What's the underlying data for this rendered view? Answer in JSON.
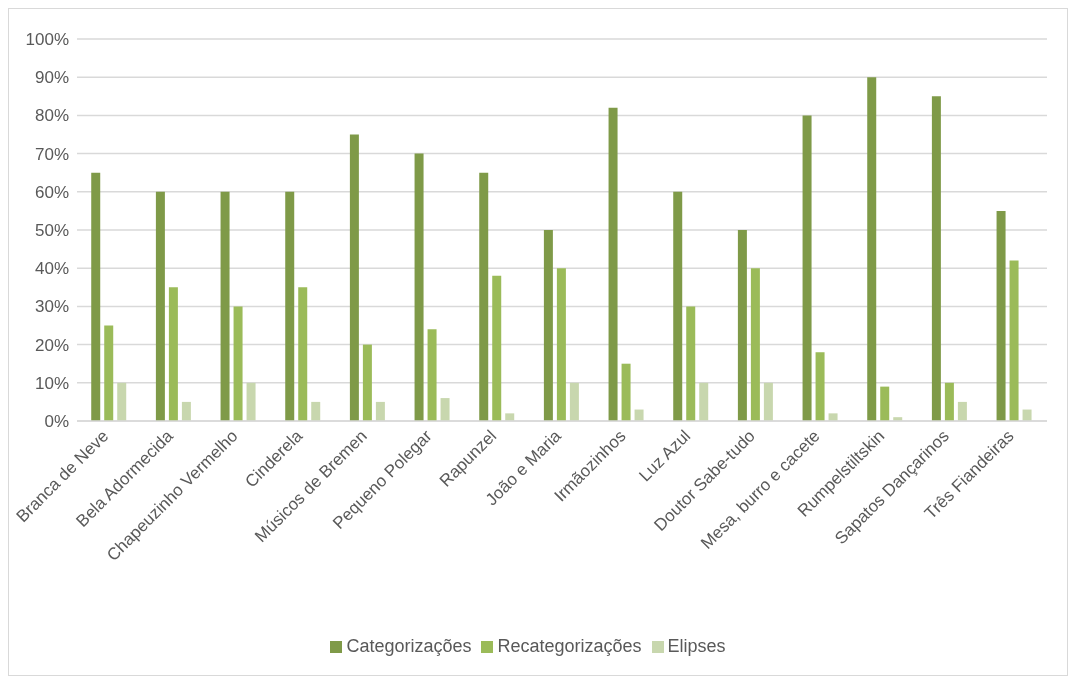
{
  "chart_data": {
    "type": "bar",
    "categories": [
      "Branca de Neve",
      "Bela Adormecida",
      "Chapeuzinho Vermelho",
      "Cinderela",
      "Músicos de Bremen",
      "Pequeno Polegar",
      "Rapunzel",
      "João e Maria",
      "Irmãozinhos",
      "Luz Azul",
      "Doutor Sabe-tudo",
      "Mesa, burro e cacete",
      "Rumpelstiltskin",
      "Sapatos Dançarinos",
      "Três Fiandeiras"
    ],
    "series": [
      {
        "name": "Categorizações",
        "color": "#7f9a48",
        "values": [
          65,
          60,
          60,
          60,
          75,
          70,
          65,
          50,
          82,
          60,
          50,
          80,
          90,
          85,
          55
        ]
      },
      {
        "name": "Recategorizações",
        "color": "#9bbb59",
        "values": [
          25,
          35,
          30,
          35,
          20,
          24,
          38,
          40,
          15,
          30,
          40,
          18,
          9,
          10,
          42
        ]
      },
      {
        "name": "Elipses",
        "color": "#c8d7ae",
        "values": [
          10,
          5,
          10,
          5,
          5,
          6,
          2,
          10,
          3,
          10,
          10,
          2,
          1,
          5,
          3
        ]
      }
    ],
    "ylim": [
      0,
      100
    ],
    "yticks": [
      {
        "value": 0,
        "label": "0%"
      },
      {
        "value": 10,
        "label": "10%"
      },
      {
        "value": 20,
        "label": "20%"
      },
      {
        "value": 30,
        "label": "30%"
      },
      {
        "value": 40,
        "label": "40%"
      },
      {
        "value": 50,
        "label": "50%"
      },
      {
        "value": 60,
        "label": "60%"
      },
      {
        "value": 70,
        "label": "70%"
      },
      {
        "value": 80,
        "label": "80%"
      },
      {
        "value": 90,
        "label": "90%"
      },
      {
        "value": 100,
        "label": "100%"
      }
    ],
    "grid": "y",
    "legend": "bottom"
  }
}
